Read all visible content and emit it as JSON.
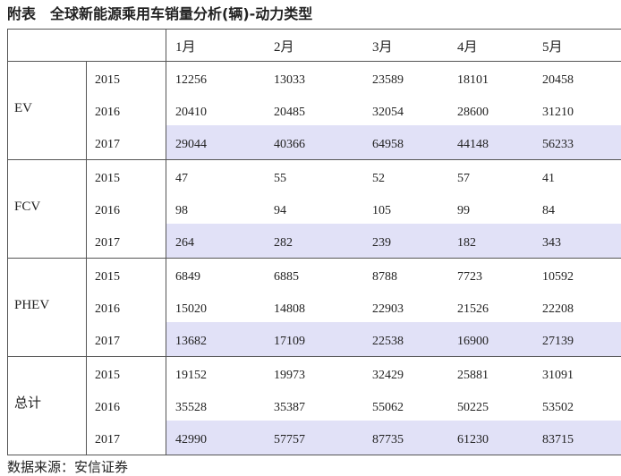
{
  "title": "附表　全球新能源乘用车销量分析(辆)-动力类型",
  "header": {
    "months": [
      "1月",
      "2月",
      "3月",
      "4月",
      "5月"
    ]
  },
  "groups": [
    {
      "name": "EV",
      "rows": [
        {
          "year": "2015",
          "values": [
            "12256",
            "13033",
            "23589",
            "18101",
            "20458"
          ]
        },
        {
          "year": "2016",
          "values": [
            "20410",
            "20485",
            "32054",
            "28600",
            "31210"
          ]
        },
        {
          "year": "2017",
          "values": [
            "29044",
            "40366",
            "64958",
            "44148",
            "56233"
          ]
        }
      ]
    },
    {
      "name": "FCV",
      "rows": [
        {
          "year": "2015",
          "values": [
            "47",
            "55",
            "52",
            "57",
            "41"
          ]
        },
        {
          "year": "2016",
          "values": [
            "98",
            "94",
            "105",
            "99",
            "84"
          ]
        },
        {
          "year": "2017",
          "values": [
            "264",
            "282",
            "239",
            "182",
            "343"
          ]
        }
      ]
    },
    {
      "name": "PHEV",
      "rows": [
        {
          "year": "2015",
          "values": [
            "6849",
            "6885",
            "8788",
            "7723",
            "10592"
          ]
        },
        {
          "year": "2016",
          "values": [
            "15020",
            "14808",
            "22903",
            "21526",
            "22208"
          ]
        },
        {
          "year": "2017",
          "values": [
            "13682",
            "17109",
            "22538",
            "16900",
            "27139"
          ]
        }
      ]
    },
    {
      "name": "总计",
      "rows": [
        {
          "year": "2015",
          "values": [
            "19152",
            "19973",
            "32429",
            "25881",
            "31091"
          ]
        },
        {
          "year": "2016",
          "values": [
            "35528",
            "35387",
            "55062",
            "50225",
            "53502"
          ]
        },
        {
          "year": "2017",
          "values": [
            "42990",
            "57757",
            "87735",
            "61230",
            "83715"
          ]
        }
      ]
    }
  ],
  "source": "数据来源：安信证券"
}
